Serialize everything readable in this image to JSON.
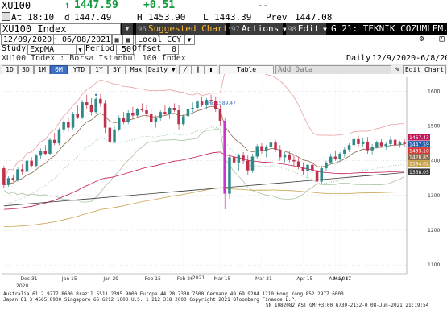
{
  "header": {
    "ticker": "XU100",
    "last_price": "1447.59",
    "change": "+0.51",
    "sparkline": "--",
    "at_label": "At",
    "time": "18:10",
    "day_open_label": "d",
    "day_open": "1447.49",
    "high_label": "H",
    "high": "1453.90",
    "low_label": "L",
    "low": "1443.39",
    "prev_label": "Prev",
    "prev": "1447.08"
  },
  "toolbar": {
    "security": "XU100 Index",
    "suggested_code": "96",
    "suggested": "Suggested Charts",
    "actions_code": "97",
    "actions": "Actions",
    "edit_code": "98",
    "edit": "Edit",
    "title": "G 21: TEKNIK COZUMLEM..."
  },
  "range": {
    "start": "12/09/2020",
    "end": "06/08/2021",
    "currency": "Local CCY"
  },
  "study": {
    "label": "Study",
    "value": "ExpMA",
    "period_label": "Period",
    "period": "50",
    "offset_label": "Offset",
    "offset": "0"
  },
  "subtitle": {
    "name": "XU100 Index : Borsa Istanbul 100 Index",
    "frequency": "Daily",
    "dates": "12/9/2020-6/8/2021"
  },
  "periods": [
    "1D",
    "3D",
    "1M",
    "6M",
    "YTD",
    "1Y",
    "5Y",
    "Max"
  ],
  "selected_period": "6M",
  "frequency_select": "Daily",
  "table_btn": "Table",
  "add_data": "Add Data",
  "edit_chart": "Edit Chart",
  "chart_data": {
    "type": "candlestick",
    "annotation": "Hi: 1589.47",
    "year_labels": [
      "2020",
      "2021"
    ],
    "x_ticks": [
      "Dec 31",
      "Jan 15",
      "Jan 29",
      "Feb 15",
      "Feb 26",
      "Mar 15",
      "Mar 31",
      "Apr 15",
      "Apr 30",
      "May 17",
      "May 31"
    ],
    "y_ticks": [
      1600,
      1500,
      1400,
      1300,
      1200,
      1100
    ],
    "ylim": [
      1075,
      1640
    ],
    "price_tags": [
      {
        "value": "1467.43",
        "color": "#c2185b"
      },
      {
        "value": "1447.59",
        "color": "#1e5aa8"
      },
      {
        "value": "1433.10",
        "color": "#d43c3c"
      },
      {
        "value": "1428.85",
        "color": "#8a6a4a"
      },
      {
        "value": "1394.02",
        "color": "#c7a14a"
      },
      {
        "value": "1368.05",
        "color": "#3a3a3a"
      }
    ],
    "candles": [
      [
        1378,
        1385,
        1320,
        1330
      ],
      [
        1330,
        1355,
        1325,
        1350
      ],
      [
        1350,
        1360,
        1340,
        1345
      ],
      [
        1345,
        1380,
        1340,
        1375
      ],
      [
        1375,
        1390,
        1360,
        1368
      ],
      [
        1368,
        1405,
        1365,
        1400
      ],
      [
        1400,
        1410,
        1380,
        1385
      ],
      [
        1385,
        1420,
        1380,
        1415
      ],
      [
        1415,
        1435,
        1405,
        1428
      ],
      [
        1428,
        1445,
        1415,
        1420
      ],
      [
        1420,
        1465,
        1415,
        1460
      ],
      [
        1460,
        1480,
        1445,
        1450
      ],
      [
        1450,
        1495,
        1445,
        1490
      ],
      [
        1490,
        1520,
        1480,
        1512
      ],
      [
        1512,
        1525,
        1485,
        1495
      ],
      [
        1495,
        1540,
        1490,
        1535
      ],
      [
        1535,
        1560,
        1520,
        1525
      ],
      [
        1525,
        1575,
        1520,
        1568
      ],
      [
        1568,
        1590,
        1550,
        1560
      ],
      [
        1560,
        1580,
        1530,
        1540
      ],
      [
        1540,
        1585,
        1535,
        1578
      ],
      [
        1578,
        1592,
        1555,
        1565
      ],
      [
        1565,
        1575,
        1480,
        1495
      ],
      [
        1495,
        1520,
        1440,
        1455
      ],
      [
        1455,
        1500,
        1450,
        1490
      ],
      [
        1490,
        1530,
        1485,
        1522
      ],
      [
        1522,
        1540,
        1505,
        1512
      ],
      [
        1512,
        1545,
        1505,
        1538
      ],
      [
        1538,
        1555,
        1520,
        1530
      ],
      [
        1530,
        1552,
        1525,
        1548
      ],
      [
        1548,
        1565,
        1540,
        1545
      ],
      [
        1545,
        1560,
        1525,
        1535
      ],
      [
        1535,
        1548,
        1505,
        1512
      ],
      [
        1512,
        1530,
        1495,
        1522
      ],
      [
        1522,
        1545,
        1515,
        1540
      ],
      [
        1540,
        1560,
        1530,
        1535
      ],
      [
        1535,
        1555,
        1520,
        1552
      ],
      [
        1552,
        1565,
        1540,
        1545
      ],
      [
        1545,
        1560,
        1490,
        1505
      ],
      [
        1505,
        1535,
        1500,
        1528
      ],
      [
        1528,
        1555,
        1520,
        1548
      ],
      [
        1548,
        1568,
        1540,
        1552
      ],
      [
        1552,
        1575,
        1545,
        1570
      ],
      [
        1570,
        1585,
        1555,
        1560
      ],
      [
        1560,
        1580,
        1550,
        1575
      ],
      [
        1575,
        1590,
        1560,
        1572
      ],
      [
        1572,
        1585,
        1540,
        1548
      ],
      [
        1548,
        1560,
        1500,
        1515
      ],
      [
        1515,
        1525,
        1260,
        1305
      ],
      [
        1305,
        1420,
        1290,
        1410
      ],
      [
        1410,
        1440,
        1390,
        1395
      ],
      [
        1395,
        1420,
        1370,
        1415
      ],
      [
        1415,
        1425,
        1390,
        1400
      ],
      [
        1400,
        1415,
        1360,
        1372
      ],
      [
        1372,
        1420,
        1365,
        1412
      ],
      [
        1412,
        1448,
        1405,
        1442
      ],
      [
        1442,
        1450,
        1420,
        1428
      ],
      [
        1428,
        1445,
        1410,
        1440
      ],
      [
        1440,
        1458,
        1430,
        1452
      ],
      [
        1452,
        1460,
        1425,
        1432
      ],
      [
        1432,
        1445,
        1400,
        1410
      ],
      [
        1410,
        1425,
        1395,
        1418
      ],
      [
        1418,
        1428,
        1395,
        1402
      ],
      [
        1402,
        1415,
        1385,
        1398
      ],
      [
        1398,
        1410,
        1375,
        1382
      ],
      [
        1382,
        1395,
        1360,
        1370
      ],
      [
        1370,
        1390,
        1350,
        1388
      ],
      [
        1388,
        1395,
        1365,
        1372
      ],
      [
        1372,
        1380,
        1325,
        1340
      ],
      [
        1340,
        1385,
        1335,
        1378
      ],
      [
        1378,
        1400,
        1370,
        1395
      ],
      [
        1395,
        1420,
        1390,
        1412
      ],
      [
        1412,
        1430,
        1400,
        1405
      ],
      [
        1405,
        1425,
        1398,
        1420
      ],
      [
        1420,
        1440,
        1410,
        1432
      ],
      [
        1432,
        1450,
        1425,
        1445
      ],
      [
        1445,
        1470,
        1440,
        1462
      ],
      [
        1462,
        1472,
        1440,
        1448
      ],
      [
        1448,
        1465,
        1440,
        1455
      ],
      [
        1455,
        1468,
        1420,
        1430
      ],
      [
        1430,
        1448,
        1418,
        1440
      ],
      [
        1440,
        1458,
        1435,
        1452
      ],
      [
        1452,
        1462,
        1438,
        1442
      ],
      [
        1442,
        1455,
        1432,
        1448
      ],
      [
        1448,
        1470,
        1440,
        1460
      ],
      [
        1460,
        1468,
        1440,
        1445
      ],
      [
        1445,
        1458,
        1438,
        1452
      ],
      [
        1452,
        1462,
        1440,
        1448
      ]
    ]
  },
  "footer": {
    "line1": "Australia 61 2 9777 8600 Brazil 5511 2395 9000 Europe 44 20 7330 7500 Germany 49 69 9204 1210 Hong Kong 852 2977 6000",
    "line2": "Japan 81 3 4565 8900        Singapore 65 6212 1000        U.S. 1 212 318 2000        Copyright 2021 Bloomberg Finance L.P.",
    "line3": "SN 1082082 AST  GMT+3:00 G730-2132-0 08-Jun-2021 21:19:54"
  }
}
